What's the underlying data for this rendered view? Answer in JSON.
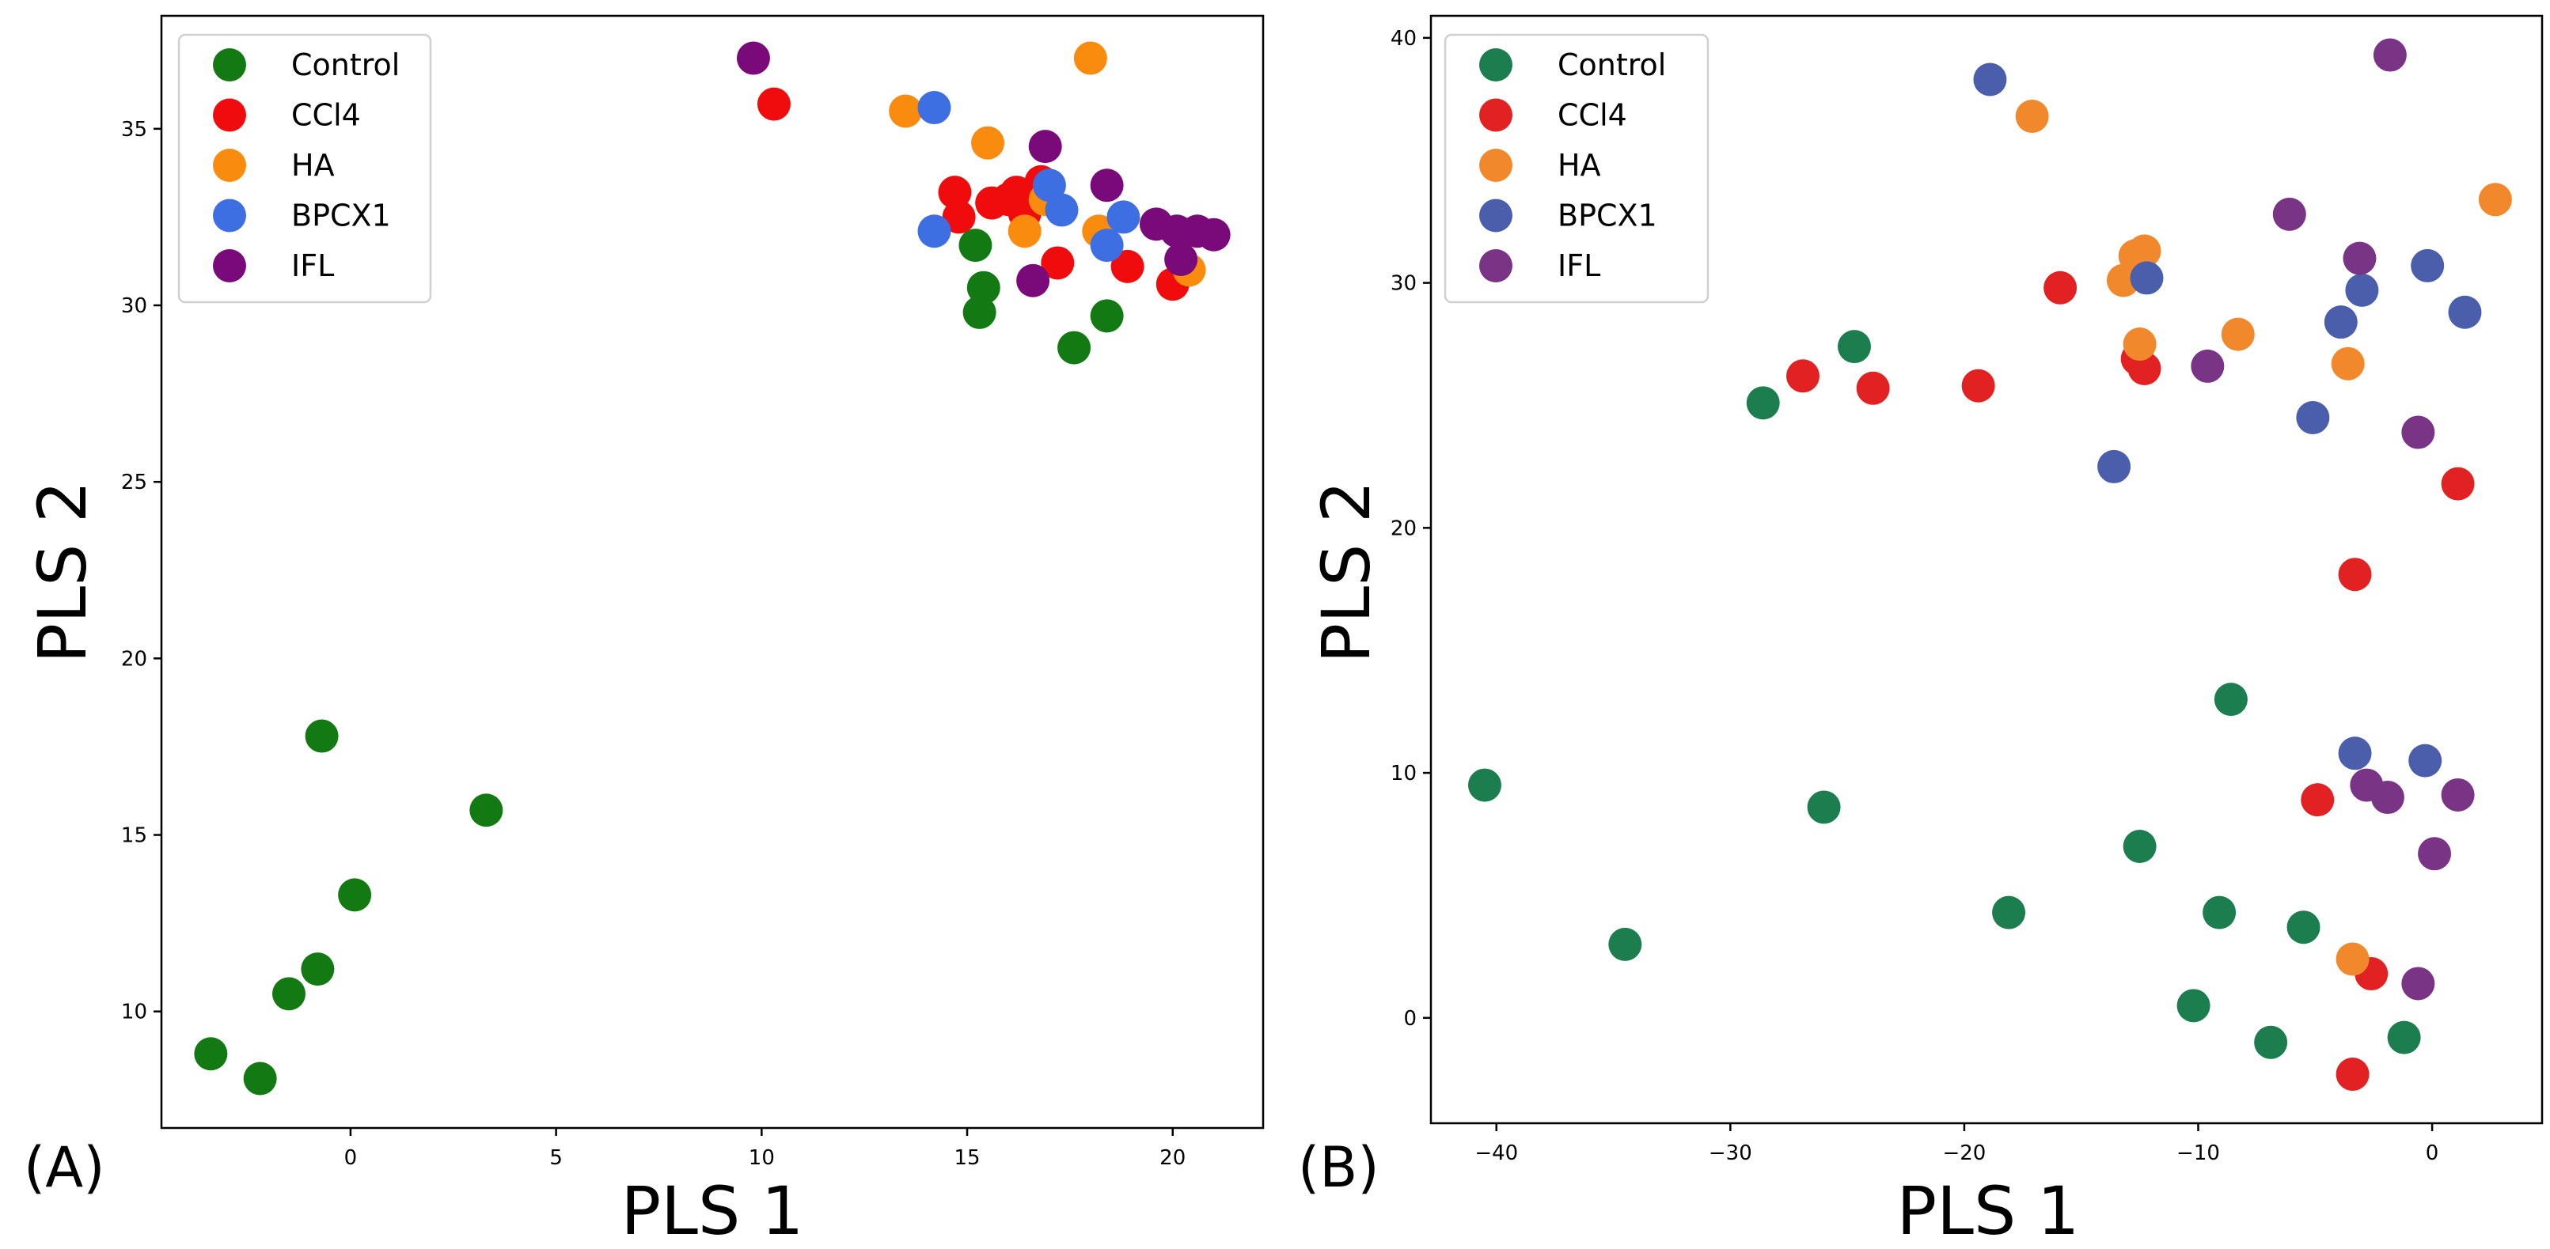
{
  "chart_data": [
    {
      "panel_label": "(A)",
      "type": "scatter",
      "xlabel": "PLS 1",
      "ylabel": "PLS 2",
      "xlim": [
        -4.6,
        22.2
      ],
      "ylim": [
        6.7,
        38.2
      ],
      "xticks": [
        0,
        5,
        10,
        15,
        20
      ],
      "yticks": [
        10,
        15,
        20,
        25,
        30,
        35
      ],
      "legend_position": "top-left",
      "series": [
        {
          "name": "Control",
          "color": "#137a13",
          "points": [
            [
              -3.4,
              8.8
            ],
            [
              -2.2,
              8.1
            ],
            [
              -1.5,
              10.5
            ],
            [
              -0.8,
              11.2
            ],
            [
              0.1,
              13.3
            ],
            [
              -0.7,
              17.8
            ],
            [
              3.3,
              15.7
            ],
            [
              15.2,
              31.7
            ],
            [
              15.4,
              30.5
            ],
            [
              15.3,
              29.8
            ],
            [
              17.6,
              28.8
            ],
            [
              18.4,
              29.7
            ]
          ]
        },
        {
          "name": "CCl4",
          "color": "#f00c0c",
          "points": [
            [
              10.3,
              35.7
            ],
            [
              14.7,
              33.2
            ],
            [
              14.8,
              32.5
            ],
            [
              15.6,
              32.9
            ],
            [
              16.0,
              33.0
            ],
            [
              16.2,
              33.2
            ],
            [
              16.4,
              32.6
            ],
            [
              16.8,
              33.5
            ],
            [
              17.2,
              31.2
            ],
            [
              18.9,
              31.1
            ],
            [
              20.0,
              30.6
            ]
          ]
        },
        {
          "name": "HA",
          "color": "#f98b0e",
          "points": [
            [
              13.5,
              35.5
            ],
            [
              15.5,
              34.6
            ],
            [
              16.4,
              32.1
            ],
            [
              16.9,
              33.0
            ],
            [
              18.0,
              37.0
            ],
            [
              18.2,
              32.1
            ],
            [
              20.4,
              31.0
            ]
          ]
        },
        {
          "name": "BPCX1",
          "color": "#3d6ee2",
          "points": [
            [
              14.2,
              35.6
            ],
            [
              14.2,
              32.1
            ],
            [
              17.0,
              33.4
            ],
            [
              17.3,
              32.7
            ],
            [
              18.4,
              31.7
            ],
            [
              18.8,
              32.5
            ]
          ]
        },
        {
          "name": "IFL",
          "color": "#7a0a7a",
          "points": [
            [
              9.8,
              37.0
            ],
            [
              16.6,
              30.7
            ],
            [
              16.9,
              34.5
            ],
            [
              18.4,
              33.4
            ],
            [
              19.6,
              32.3
            ],
            [
              20.1,
              32.1
            ],
            [
              20.2,
              31.3
            ],
            [
              20.6,
              32.1
            ],
            [
              21.0,
              32.0
            ]
          ]
        }
      ]
    },
    {
      "panel_label": "(B)",
      "type": "scatter",
      "xlabel": "PLS 1",
      "ylabel": "PLS 2",
      "xlim": [
        -42.8,
        4.7
      ],
      "ylim": [
        -4.3,
        40.9
      ],
      "xticks": [
        -40,
        -30,
        -20,
        -10,
        0
      ],
      "xtick_labels": [
        "−40",
        "−30",
        "−20",
        "−10",
        "0"
      ],
      "yticks": [
        0,
        10,
        20,
        30,
        40
      ],
      "legend_position": "top-left",
      "series": [
        {
          "name": "Control",
          "color": "#1c7d4f",
          "points": [
            [
              -40.5,
              9.5
            ],
            [
              -34.5,
              3.0
            ],
            [
              -28.6,
              25.1
            ],
            [
              -24.7,
              27.4
            ],
            [
              -26.0,
              8.6
            ],
            [
              -18.1,
              4.3
            ],
            [
              -12.5,
              7.0
            ],
            [
              -9.1,
              4.3
            ],
            [
              -8.6,
              13.0
            ],
            [
              -10.2,
              0.5
            ],
            [
              -6.9,
              -1.0
            ],
            [
              -5.5,
              3.7
            ],
            [
              -1.2,
              -0.8
            ]
          ]
        },
        {
          "name": "CCl4",
          "color": "#e22222",
          "points": [
            [
              -26.9,
              26.2
            ],
            [
              -23.9,
              25.7
            ],
            [
              -19.4,
              25.8
            ],
            [
              -15.9,
              29.8
            ],
            [
              -12.6,
              26.9
            ],
            [
              -12.3,
              26.5
            ],
            [
              -4.9,
              8.9
            ],
            [
              -3.3,
              18.1
            ],
            [
              1.1,
              21.8
            ],
            [
              -2.6,
              1.8
            ],
            [
              -3.4,
              -2.3
            ]
          ]
        },
        {
          "name": "HA",
          "color": "#f1892c",
          "points": [
            [
              -17.1,
              36.8
            ],
            [
              -13.2,
              30.1
            ],
            [
              -12.7,
              31.1
            ],
            [
              -12.3,
              31.3
            ],
            [
              -12.5,
              27.5
            ],
            [
              -8.3,
              27.9
            ],
            [
              -3.6,
              26.7
            ],
            [
              2.7,
              33.4
            ],
            [
              -3.4,
              2.4
            ]
          ]
        },
        {
          "name": "BPCX1",
          "color": "#4a5eab",
          "points": [
            [
              -18.9,
              38.3
            ],
            [
              -12.2,
              30.2
            ],
            [
              -13.6,
              22.5
            ],
            [
              -5.1,
              24.5
            ],
            [
              -3.9,
              28.4
            ],
            [
              -3.0,
              29.7
            ],
            [
              -0.2,
              30.7
            ],
            [
              1.4,
              28.8
            ],
            [
              -3.3,
              10.8
            ],
            [
              -0.3,
              10.5
            ]
          ]
        },
        {
          "name": "IFL",
          "color": "#7a3486",
          "points": [
            [
              -1.8,
              39.3
            ],
            [
              -6.1,
              32.8
            ],
            [
              -3.1,
              31.0
            ],
            [
              -9.6,
              26.6
            ],
            [
              -0.6,
              23.9
            ],
            [
              -2.8,
              9.5
            ],
            [
              -1.9,
              9.0
            ],
            [
              1.1,
              9.1
            ],
            [
              0.1,
              6.7
            ],
            [
              -0.6,
              1.4
            ]
          ]
        }
      ]
    }
  ]
}
